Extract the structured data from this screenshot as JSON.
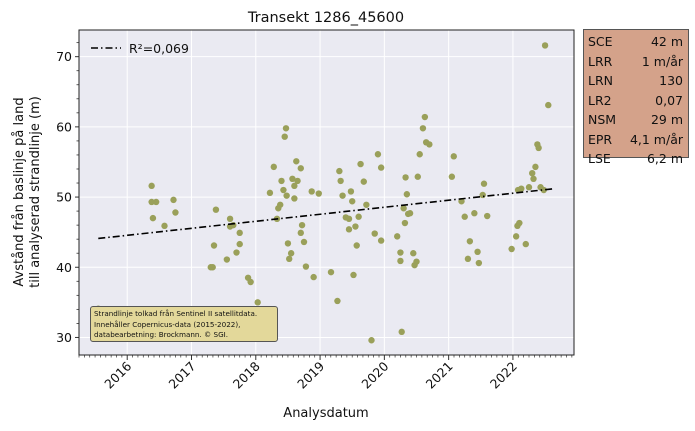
{
  "chart_data": {
    "type": "scatter",
    "title": "Transekt 1286_45600",
    "xlabel": "Analysdatum",
    "ylabel_lines": [
      "Avstånd från baslinje på land",
      "till analyserad strandlinje (m)"
    ],
    "xlim": [
      2015.25,
      2022.95
    ],
    "ylim": [
      27.5,
      73.8
    ],
    "x_ticks": [
      "2016",
      "2017",
      "2018",
      "2019",
      "2020",
      "2021",
      "2022"
    ],
    "y_ticks": [
      30,
      40,
      50,
      60,
      70
    ],
    "grid": true,
    "legend_position": "top-left",
    "legend_label": "R²=0,069",
    "trend_line": {
      "x": [
        2015.55,
        2022.65
      ],
      "y": [
        44.1,
        51.2
      ]
    },
    "points": [
      [
        2015.55,
        34.1
      ],
      [
        2016.38,
        51.6
      ],
      [
        2016.38,
        49.3
      ],
      [
        2016.45,
        49.3
      ],
      [
        2016.4,
        47.0
      ],
      [
        2016.58,
        45.9
      ],
      [
        2016.72,
        49.6
      ],
      [
        2016.75,
        47.8
      ],
      [
        2017.3,
        40.0
      ],
      [
        2017.33,
        40.0
      ],
      [
        2017.35,
        43.1
      ],
      [
        2017.38,
        48.2
      ],
      [
        2017.55,
        41.1
      ],
      [
        2017.6,
        45.8
      ],
      [
        2017.6,
        46.9
      ],
      [
        2017.65,
        46.0
      ],
      [
        2017.7,
        42.1
      ],
      [
        2017.75,
        44.9
      ],
      [
        2017.75,
        43.3
      ],
      [
        2017.88,
        38.5
      ],
      [
        2017.92,
        37.9
      ],
      [
        2018.03,
        35.0
      ],
      [
        2018.22,
        50.6
      ],
      [
        2018.28,
        54.3
      ],
      [
        2018.33,
        46.9
      ],
      [
        2018.35,
        48.4
      ],
      [
        2018.38,
        48.9
      ],
      [
        2018.4,
        52.3
      ],
      [
        2018.43,
        51.0
      ],
      [
        2018.45,
        58.6
      ],
      [
        2018.47,
        59.8
      ],
      [
        2018.48,
        50.2
      ],
      [
        2018.5,
        43.4
      ],
      [
        2018.52,
        41.2
      ],
      [
        2018.55,
        42.0
      ],
      [
        2018.57,
        52.6
      ],
      [
        2018.6,
        51.6
      ],
      [
        2018.6,
        49.8
      ],
      [
        2018.63,
        55.1
      ],
      [
        2018.65,
        52.3
      ],
      [
        2018.7,
        54.1
      ],
      [
        2018.7,
        44.9
      ],
      [
        2018.72,
        46.0
      ],
      [
        2018.75,
        43.6
      ],
      [
        2018.78,
        40.1
      ],
      [
        2018.87,
        50.8
      ],
      [
        2018.9,
        38.6
      ],
      [
        2018.98,
        50.5
      ],
      [
        2019.17,
        39.3
      ],
      [
        2019.27,
        35.2
      ],
      [
        2019.3,
        53.7
      ],
      [
        2019.32,
        52.3
      ],
      [
        2019.35,
        50.2
      ],
      [
        2019.4,
        47.1
      ],
      [
        2019.45,
        46.9
      ],
      [
        2019.45,
        45.4
      ],
      [
        2019.48,
        50.8
      ],
      [
        2019.5,
        49.4
      ],
      [
        2019.52,
        38.9
      ],
      [
        2019.55,
        45.8
      ],
      [
        2019.57,
        43.1
      ],
      [
        2019.6,
        47.2
      ],
      [
        2019.63,
        54.7
      ],
      [
        2019.68,
        52.2
      ],
      [
        2019.72,
        48.9
      ],
      [
        2019.8,
        29.6
      ],
      [
        2019.85,
        44.8
      ],
      [
        2019.9,
        56.1
      ],
      [
        2019.95,
        54.2
      ],
      [
        2019.95,
        43.8
      ],
      [
        2020.2,
        44.4
      ],
      [
        2020.25,
        42.1
      ],
      [
        2020.25,
        40.9
      ],
      [
        2020.27,
        30.8
      ],
      [
        2020.3,
        48.4
      ],
      [
        2020.32,
        46.3
      ],
      [
        2020.33,
        52.8
      ],
      [
        2020.35,
        50.4
      ],
      [
        2020.37,
        47.6
      ],
      [
        2020.4,
        47.7
      ],
      [
        2020.45,
        42.0
      ],
      [
        2020.47,
        40.3
      ],
      [
        2020.5,
        40.8
      ],
      [
        2020.52,
        52.9
      ],
      [
        2020.55,
        56.1
      ],
      [
        2020.6,
        59.8
      ],
      [
        2020.63,
        61.4
      ],
      [
        2020.65,
        57.8
      ],
      [
        2020.7,
        57.5
      ],
      [
        2021.05,
        52.9
      ],
      [
        2021.08,
        55.8
      ],
      [
        2021.2,
        49.4
      ],
      [
        2021.25,
        47.2
      ],
      [
        2021.3,
        41.2
      ],
      [
        2021.33,
        43.7
      ],
      [
        2021.4,
        47.7
      ],
      [
        2021.45,
        42.2
      ],
      [
        2021.47,
        40.6
      ],
      [
        2021.53,
        50.3
      ],
      [
        2021.55,
        51.9
      ],
      [
        2021.6,
        47.3
      ],
      [
        2021.98,
        42.6
      ],
      [
        2022.05,
        44.4
      ],
      [
        2022.07,
        45.9
      ],
      [
        2022.08,
        51.0
      ],
      [
        2022.1,
        46.3
      ],
      [
        2022.13,
        51.2
      ],
      [
        2022.2,
        43.3
      ],
      [
        2022.25,
        51.4
      ],
      [
        2022.3,
        53.4
      ],
      [
        2022.32,
        52.6
      ],
      [
        2022.35,
        54.3
      ],
      [
        2022.38,
        57.5
      ],
      [
        2022.4,
        57.0
      ],
      [
        2022.43,
        51.4
      ],
      [
        2022.48,
        51.0
      ],
      [
        2022.5,
        71.6
      ],
      [
        2022.55,
        63.1
      ]
    ],
    "colors": {
      "points": "#9aa05a",
      "trend": "#000000",
      "plot_bg": "#eaeaf2",
      "stats_bg": "#d4a28a",
      "credit_bg": "#e3d89a"
    }
  },
  "stats": [
    {
      "name": "SCE",
      "value": "42 m"
    },
    {
      "name": "LRR",
      "value": "1 m/år"
    },
    {
      "name": "LRN",
      "value": "130"
    },
    {
      "name": "LR2",
      "value": "0,07"
    },
    {
      "name": "NSM",
      "value": "29 m"
    },
    {
      "name": "EPR",
      "value": "4,1 m/år"
    },
    {
      "name": "LSE",
      "value": "6,2 m"
    }
  ],
  "credit": {
    "line1": "Strandlinje tolkad från Sentinel II satellitdata.",
    "line2": "Innehåller Copernicus-data (2015-2022),",
    "line3": "databearbetning: Brockmann. © SGI."
  }
}
